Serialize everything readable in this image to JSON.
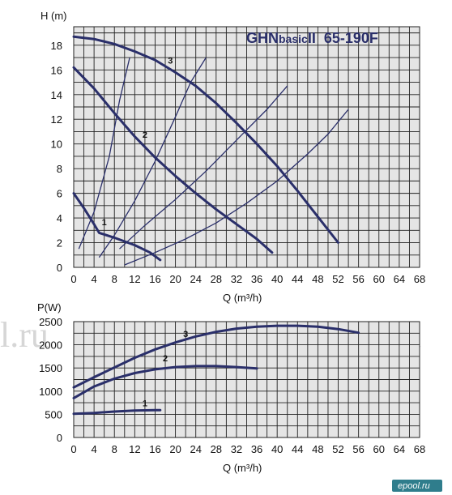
{
  "title": "GHNbasicII  65-190F",
  "watermark": [
    "l.ru",
    "ePool.ru",
    "ePool.ru"
  ],
  "brand": "epool.ru",
  "chart_data": [
    {
      "type": "line",
      "ylabel": "H (m)",
      "xlabel": "Q (m³/h)",
      "xlim": [
        0,
        68
      ],
      "ylim": [
        0,
        19.5
      ],
      "xticks": [
        0,
        4,
        8,
        12,
        16,
        20,
        24,
        28,
        32,
        36,
        40,
        44,
        48,
        52,
        56,
        60,
        64,
        68
      ],
      "yticks": [
        0,
        2,
        4,
        6,
        8,
        10,
        12,
        14,
        16,
        18
      ],
      "grid": true,
      "series": [
        {
          "name": "1",
          "points": [
            [
              0,
              6
            ],
            [
              2,
              4.8
            ],
            [
              4,
              3.5
            ],
            [
              5,
              2.8
            ],
            [
              8,
              2.4
            ],
            [
              12,
              1.8
            ],
            [
              15,
              1.2
            ],
            [
              17,
              0.6
            ]
          ],
          "label_at": [
            6,
            3.4
          ]
        },
        {
          "name": "2",
          "points": [
            [
              0,
              16.2
            ],
            [
              4,
              14.5
            ],
            [
              8,
              12.5
            ],
            [
              12,
              10.6
            ],
            [
              16,
              8.9
            ],
            [
              20,
              7.4
            ],
            [
              24,
              6
            ],
            [
              28,
              4.7
            ],
            [
              32,
              3.5
            ],
            [
              36,
              2.3
            ],
            [
              39,
              1.2
            ]
          ],
          "label_at": [
            14,
            10.5
          ]
        },
        {
          "name": "3",
          "points": [
            [
              0,
              18.7
            ],
            [
              4,
              18.5
            ],
            [
              8,
              18.1
            ],
            [
              12,
              17.5
            ],
            [
              16,
              16.8
            ],
            [
              20,
              15.8
            ],
            [
              24,
              14.7
            ],
            [
              28,
              13.3
            ],
            [
              32,
              11.7
            ],
            [
              36,
              10
            ],
            [
              40,
              8.2
            ],
            [
              44,
              6.2
            ],
            [
              48,
              4.1
            ],
            [
              52,
              2
            ]
          ],
          "label_at": [
            19,
            16.5
          ]
        }
      ],
      "system_curves": [
        {
          "points": [
            [
              1,
              1.5
            ],
            [
              4,
              4.5
            ],
            [
              7,
              9
            ],
            [
              9,
              13.5
            ],
            [
              11,
              17
            ]
          ]
        },
        {
          "points": [
            [
              5,
              0.8
            ],
            [
              8,
              2.6
            ],
            [
              12,
              5.4
            ],
            [
              16,
              8.6
            ],
            [
              20,
              12.2
            ],
            [
              23,
              15
            ],
            [
              26,
              17
            ]
          ]
        },
        {
          "points": [
            [
              9,
              1.5
            ],
            [
              14,
              3.4
            ],
            [
              20,
              5.5
            ],
            [
              26,
              7.8
            ],
            [
              32,
              10.3
            ],
            [
              38,
              12.8
            ],
            [
              42,
              14.7
            ]
          ]
        },
        {
          "points": [
            [
              10,
              0.2
            ],
            [
              16,
              1.2
            ],
            [
              22,
              2.3
            ],
            [
              28,
              3.6
            ],
            [
              34,
              5.2
            ],
            [
              40,
              7
            ],
            [
              46,
              9.2
            ],
            [
              50,
              10.8
            ],
            [
              54,
              12.8
            ]
          ]
        }
      ]
    },
    {
      "type": "line",
      "ylabel": "P(W)",
      "xlabel": "Q (m³/h)",
      "xlim": [
        0,
        68
      ],
      "ylim": [
        0,
        2500
      ],
      "xticks": [
        0,
        4,
        8,
        12,
        16,
        20,
        24,
        28,
        32,
        36,
        40,
        44,
        48,
        52,
        56,
        60,
        64,
        68
      ],
      "yticks": [
        0,
        500,
        1000,
        1500,
        2000,
        2500
      ],
      "grid": true,
      "series": [
        {
          "name": "1",
          "points": [
            [
              0,
              510
            ],
            [
              4,
              530
            ],
            [
              8,
              560
            ],
            [
              12,
              580
            ],
            [
              16,
              590
            ],
            [
              17,
              590
            ]
          ],
          "label_at": [
            14,
            670
          ]
        },
        {
          "name": "2",
          "points": [
            [
              0,
              850
            ],
            [
              4,
              1100
            ],
            [
              8,
              1270
            ],
            [
              12,
              1390
            ],
            [
              16,
              1470
            ],
            [
              20,
              1520
            ],
            [
              24,
              1540
            ],
            [
              28,
              1540
            ],
            [
              32,
              1520
            ],
            [
              36,
              1490
            ]
          ],
          "label_at": [
            18,
            1640
          ]
        },
        {
          "name": "3",
          "points": [
            [
              0,
              1080
            ],
            [
              4,
              1300
            ],
            [
              8,
              1510
            ],
            [
              12,
              1720
            ],
            [
              16,
              1900
            ],
            [
              20,
              2050
            ],
            [
              24,
              2180
            ],
            [
              28,
              2280
            ],
            [
              32,
              2350
            ],
            [
              36,
              2390
            ],
            [
              40,
              2410
            ],
            [
              44,
              2410
            ],
            [
              48,
              2390
            ],
            [
              52,
              2340
            ],
            [
              56,
              2260
            ]
          ],
          "label_at": [
            22,
            2170
          ]
        }
      ]
    }
  ]
}
